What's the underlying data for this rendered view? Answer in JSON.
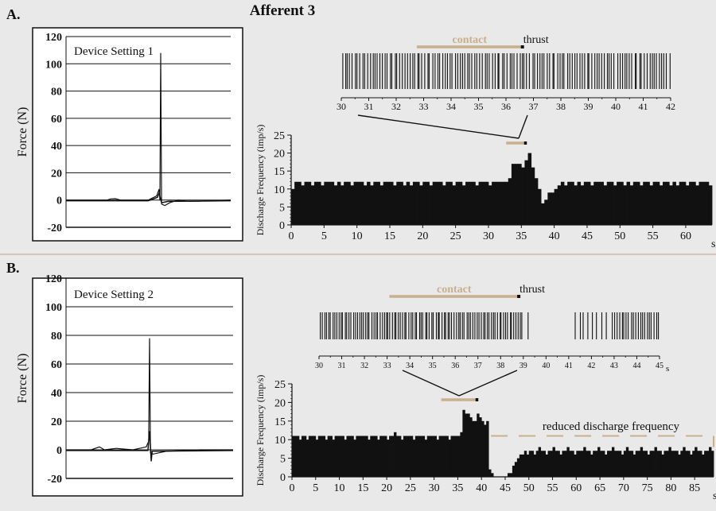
{
  "title": "Afferent 3",
  "colors": {
    "background": "#e9e9e9",
    "ink": "#111111",
    "contact": "#c8b08d",
    "panel": "#ffffff",
    "divider": "#c9a27e"
  },
  "chart_data": [
    {
      "id": "A-force",
      "panel": "A.",
      "type": "line",
      "label": "Device Setting 1",
      "ylabel": "Force (N)",
      "ylim": [
        -20,
        120
      ],
      "yticks": [
        120,
        100,
        80,
        60,
        40,
        20,
        0,
        -20
      ],
      "grid": true,
      "series": [
        {
          "points": [
            [
              0,
              0
            ],
            [
              0.25,
              0
            ],
            [
              0.27,
              0.8
            ],
            [
              0.3,
              1
            ],
            [
              0.33,
              0
            ],
            [
              0.5,
              0
            ],
            [
              0.55,
              3
            ],
            [
              0.565,
              8
            ],
            [
              0.57,
              0
            ],
            [
              0.575,
              108
            ],
            [
              0.58,
              -3
            ],
            [
              0.6,
              -4
            ],
            [
              0.63,
              -2
            ],
            [
              0.68,
              0
            ],
            [
              0.75,
              -1
            ],
            [
              1,
              0
            ]
          ]
        },
        {
          "points": [
            [
              0,
              -0.5
            ],
            [
              0.5,
              -0.5
            ],
            [
              0.555,
              2
            ],
            [
              0.565,
              5
            ],
            [
              0.58,
              -2
            ],
            [
              0.62,
              -1
            ],
            [
              1,
              -0.5
            ]
          ]
        }
      ]
    },
    {
      "id": "A-raster",
      "panel": "A.",
      "type": "raster",
      "xlim": [
        30,
        42
      ],
      "xticks": [
        30,
        31,
        32,
        33,
        34,
        35,
        36,
        37,
        38,
        39,
        40,
        41,
        42
      ],
      "contact_label": "contact",
      "thrust_label": "thrust",
      "contact": [
        32.75,
        36.6
      ],
      "thrust_at": 36.6,
      "segments": [
        {
          "range": [
            30,
            42
          ],
          "rate": 11
        }
      ]
    },
    {
      "id": "A-rate",
      "panel": "A.",
      "type": "bar",
      "ylabel": "Discharge Frequency (imp/s)",
      "xlim": [
        0,
        64
      ],
      "xticks": [
        0,
        5,
        10,
        15,
        20,
        25,
        30,
        35,
        40,
        45,
        50,
        55,
        60
      ],
      "xunit": "s",
      "ylim": [
        0,
        25
      ],
      "yticks": [
        0,
        5,
        10,
        15,
        20,
        25
      ],
      "bin_width": 0.5,
      "contact": [
        32.7,
        35.6
      ],
      "thrust_at": 35.6,
      "values": [
        10,
        12,
        12,
        11,
        12,
        12,
        11,
        12,
        12,
        11,
        12,
        12,
        12,
        11,
        12,
        11,
        12,
        12,
        11,
        12,
        12,
        12,
        11,
        12,
        11,
        12,
        12,
        11,
        12,
        12,
        12,
        11,
        12,
        12,
        11,
        12,
        11,
        12,
        12,
        11,
        12,
        12,
        11,
        12,
        12,
        12,
        11,
        12,
        12,
        11,
        12,
        12,
        11,
        12,
        12,
        12,
        11,
        12,
        12,
        12,
        11,
        12,
        12,
        12,
        12,
        12,
        13,
        17,
        17,
        17,
        16,
        18,
        20,
        16,
        13,
        10,
        6,
        7,
        9,
        9,
        10,
        11,
        12,
        11,
        12,
        12,
        11,
        12,
        11,
        12,
        12,
        11,
        12,
        12,
        12,
        11,
        12,
        12,
        11,
        12,
        12,
        11,
        12,
        11,
        12,
        12,
        11,
        12,
        12,
        11,
        12,
        12,
        11,
        12,
        12,
        11,
        12,
        11,
        12,
        12,
        11,
        12,
        12,
        11,
        12,
        12,
        12,
        11
      ]
    },
    {
      "id": "B-force",
      "panel": "B.",
      "type": "line",
      "label": "Device Setting 2",
      "ylabel": "Force (N)",
      "ylim": [
        -20,
        120
      ],
      "yticks": [
        120,
        100,
        80,
        60,
        40,
        20,
        0,
        -20
      ],
      "grid": true,
      "series": [
        {
          "points": [
            [
              0,
              0
            ],
            [
              0.15,
              0
            ],
            [
              0.2,
              2
            ],
            [
              0.23,
              0
            ],
            [
              0.3,
              1
            ],
            [
              0.4,
              0
            ],
            [
              0.48,
              2
            ],
            [
              0.495,
              6
            ],
            [
              0.5,
              78
            ],
            [
              0.505,
              -2
            ],
            [
              0.52,
              -3
            ],
            [
              0.6,
              -1
            ],
            [
              0.72,
              -0.5
            ],
            [
              0.8,
              0
            ],
            [
              1,
              0
            ]
          ]
        },
        {
          "points": [
            [
              0,
              -0.5
            ],
            [
              0.49,
              -0.5
            ],
            [
              0.5,
              13
            ],
            [
              0.51,
              -8
            ],
            [
              0.515,
              -1
            ],
            [
              1,
              -0.5
            ]
          ]
        }
      ]
    },
    {
      "id": "B-raster",
      "panel": "B.",
      "type": "raster",
      "xlim": [
        30,
        45
      ],
      "xticks": [
        30,
        31,
        32,
        33,
        34,
        35,
        36,
        37,
        38,
        39,
        40,
        41,
        42,
        43,
        44,
        45
      ],
      "xunit": "s",
      "contact_label": "contact",
      "thrust_label": "thrust",
      "contact": [
        33.1,
        38.8
      ],
      "thrust_at": 38.8,
      "segments": [
        {
          "range": [
            30,
            39
          ],
          "rate": 11
        },
        {
          "range": [
            39.2,
            39.25
          ],
          "rate": 1
        },
        {
          "range": [
            41.2,
            42.7
          ],
          "rate": 5
        },
        {
          "range": [
            42.9,
            45
          ],
          "rate": 10
        }
      ]
    },
    {
      "id": "B-rate",
      "panel": "B.",
      "type": "bar",
      "ylabel": "Discharge Frequency (imp/s)",
      "xlim": [
        0,
        89
      ],
      "xticks": [
        0,
        5,
        10,
        15,
        20,
        25,
        30,
        35,
        40,
        45,
        50,
        55,
        60,
        65,
        70,
        75,
        80,
        85
      ],
      "xunit": "s",
      "ylim": [
        0,
        25
      ],
      "yticks": [
        0,
        5,
        10,
        15,
        20,
        25
      ],
      "bin_width": 0.5,
      "contact": [
        31.5,
        39.0
      ],
      "thrust_at": 39.0,
      "annotation": "reduced discharge frequency",
      "reduced_range": [
        42,
        89
      ],
      "reduced_level": 11,
      "values": [
        11,
        11,
        11,
        10,
        11,
        11,
        10,
        11,
        11,
        11,
        10,
        11,
        11,
        11,
        10,
        11,
        11,
        10,
        11,
        11,
        11,
        11,
        10,
        11,
        11,
        11,
        10,
        11,
        11,
        11,
        11,
        11,
        10,
        11,
        11,
        11,
        10,
        11,
        11,
        11,
        10,
        11,
        11,
        12,
        11,
        11,
        10,
        11,
        11,
        11,
        11,
        10,
        11,
        11,
        11,
        11,
        10,
        11,
        11,
        11,
        11,
        10,
        11,
        11,
        11,
        11,
        10,
        11,
        11,
        11,
        11,
        12,
        18,
        17,
        17,
        16,
        15,
        15,
        17,
        16,
        15,
        14,
        15,
        2,
        1,
        0,
        0,
        0,
        0,
        0,
        0,
        1,
        1,
        3,
        4,
        5,
        6,
        6,
        7,
        6,
        7,
        7,
        6,
        7,
        8,
        7,
        7,
        6,
        7,
        7,
        8,
        7,
        7,
        6,
        7,
        7,
        8,
        7,
        7,
        6,
        7,
        7,
        7,
        8,
        7,
        7,
        6,
        7,
        7,
        8,
        7,
        7,
        6,
        7,
        7,
        8,
        7,
        7,
        7,
        6,
        7,
        8,
        7,
        7,
        6,
        7,
        7,
        8,
        7,
        7,
        6,
        7,
        7,
        8,
        7,
        7,
        6,
        7,
        7,
        8,
        7,
        7,
        7,
        6,
        7,
        8,
        7,
        7,
        6,
        7,
        8,
        7,
        7,
        6,
        7,
        7,
        8,
        7,
        7,
        6,
        5
      ]
    }
  ]
}
